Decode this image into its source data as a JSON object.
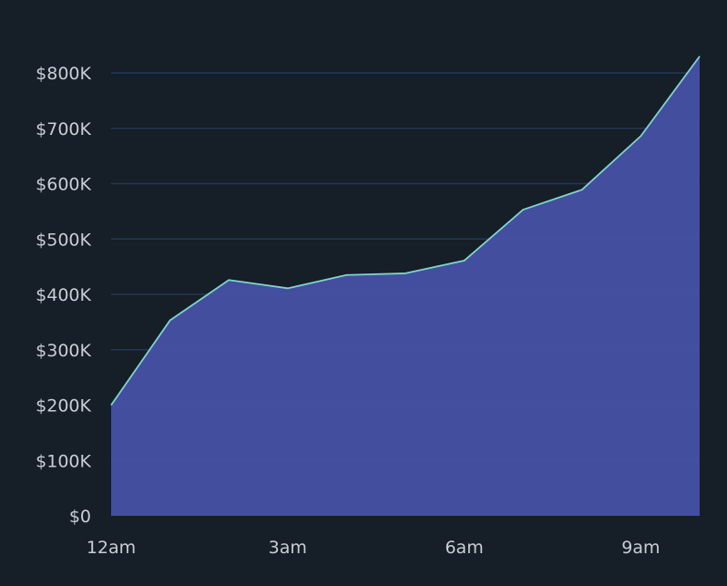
{
  "chart_data": {
    "type": "area",
    "x": [
      "12am",
      "1am",
      "2am",
      "3am",
      "4am",
      "5am",
      "6am",
      "7am",
      "8am",
      "9am",
      "10am"
    ],
    "x_tick_labels": [
      "12am",
      "3am",
      "6am",
      "9am"
    ],
    "y_tick_labels": [
      "$0",
      "$100K",
      "$200K",
      "$300K",
      "$400K",
      "$500K",
      "$600K",
      "$700K",
      "$800K"
    ],
    "y_ticks": [
      0,
      100000,
      200000,
      300000,
      400000,
      500000,
      600000,
      700000,
      800000
    ],
    "ylim": [
      0,
      800000
    ],
    "series": [
      {
        "values": [
          200000,
          353000,
          426000,
          411000,
          435000,
          438000,
          461000,
          553000,
          589000,
          686000,
          830000
        ]
      }
    ],
    "grid": true,
    "legend": "none",
    "colors": {
      "background": "#161e27",
      "area_fill": "#4651a5",
      "line": "#7fd6c8",
      "grid": "#22385a",
      "text": "#c9ced6"
    }
  }
}
